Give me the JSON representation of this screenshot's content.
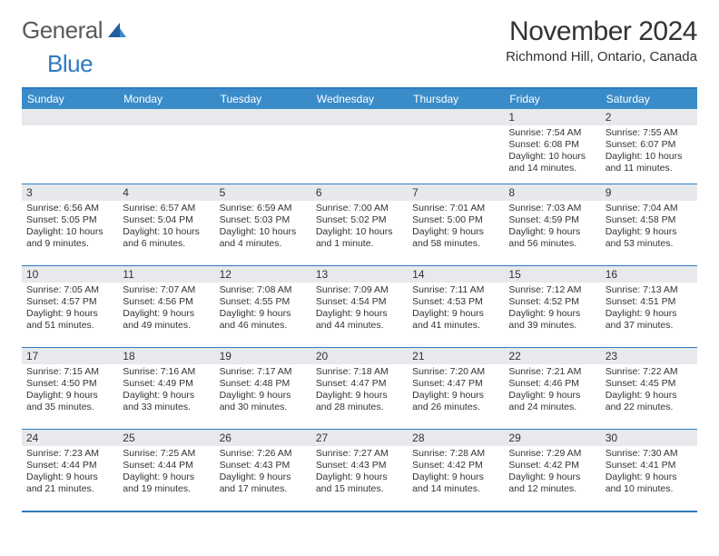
{
  "logo": {
    "word1": "General",
    "word2": "Blue"
  },
  "title": "November 2024",
  "location": "Richmond Hill, Ontario, Canada",
  "colors": {
    "header_bg": "#3a8cc9",
    "border": "#2f7ac0",
    "daybar": "#e7e9ec",
    "text": "#333333",
    "logo_gray": "#5a5a5a",
    "logo_blue": "#2f7ac0"
  },
  "weekdays": [
    "Sunday",
    "Monday",
    "Tuesday",
    "Wednesday",
    "Thursday",
    "Friday",
    "Saturday"
  ],
  "weeks": [
    [
      {
        "blank": true
      },
      {
        "blank": true
      },
      {
        "blank": true
      },
      {
        "blank": true
      },
      {
        "blank": true
      },
      {
        "n": "1",
        "sunrise": "Sunrise: 7:54 AM",
        "sunset": "Sunset: 6:08 PM",
        "daylight": "Daylight: 10 hours and 14 minutes."
      },
      {
        "n": "2",
        "sunrise": "Sunrise: 7:55 AM",
        "sunset": "Sunset: 6:07 PM",
        "daylight": "Daylight: 10 hours and 11 minutes."
      }
    ],
    [
      {
        "n": "3",
        "sunrise": "Sunrise: 6:56 AM",
        "sunset": "Sunset: 5:05 PM",
        "daylight": "Daylight: 10 hours and 9 minutes."
      },
      {
        "n": "4",
        "sunrise": "Sunrise: 6:57 AM",
        "sunset": "Sunset: 5:04 PM",
        "daylight": "Daylight: 10 hours and 6 minutes."
      },
      {
        "n": "5",
        "sunrise": "Sunrise: 6:59 AM",
        "sunset": "Sunset: 5:03 PM",
        "daylight": "Daylight: 10 hours and 4 minutes."
      },
      {
        "n": "6",
        "sunrise": "Sunrise: 7:00 AM",
        "sunset": "Sunset: 5:02 PM",
        "daylight": "Daylight: 10 hours and 1 minute."
      },
      {
        "n": "7",
        "sunrise": "Sunrise: 7:01 AM",
        "sunset": "Sunset: 5:00 PM",
        "daylight": "Daylight: 9 hours and 58 minutes."
      },
      {
        "n": "8",
        "sunrise": "Sunrise: 7:03 AM",
        "sunset": "Sunset: 4:59 PM",
        "daylight": "Daylight: 9 hours and 56 minutes."
      },
      {
        "n": "9",
        "sunrise": "Sunrise: 7:04 AM",
        "sunset": "Sunset: 4:58 PM",
        "daylight": "Daylight: 9 hours and 53 minutes."
      }
    ],
    [
      {
        "n": "10",
        "sunrise": "Sunrise: 7:05 AM",
        "sunset": "Sunset: 4:57 PM",
        "daylight": "Daylight: 9 hours and 51 minutes."
      },
      {
        "n": "11",
        "sunrise": "Sunrise: 7:07 AM",
        "sunset": "Sunset: 4:56 PM",
        "daylight": "Daylight: 9 hours and 49 minutes."
      },
      {
        "n": "12",
        "sunrise": "Sunrise: 7:08 AM",
        "sunset": "Sunset: 4:55 PM",
        "daylight": "Daylight: 9 hours and 46 minutes."
      },
      {
        "n": "13",
        "sunrise": "Sunrise: 7:09 AM",
        "sunset": "Sunset: 4:54 PM",
        "daylight": "Daylight: 9 hours and 44 minutes."
      },
      {
        "n": "14",
        "sunrise": "Sunrise: 7:11 AM",
        "sunset": "Sunset: 4:53 PM",
        "daylight": "Daylight: 9 hours and 41 minutes."
      },
      {
        "n": "15",
        "sunrise": "Sunrise: 7:12 AM",
        "sunset": "Sunset: 4:52 PM",
        "daylight": "Daylight: 9 hours and 39 minutes."
      },
      {
        "n": "16",
        "sunrise": "Sunrise: 7:13 AM",
        "sunset": "Sunset: 4:51 PM",
        "daylight": "Daylight: 9 hours and 37 minutes."
      }
    ],
    [
      {
        "n": "17",
        "sunrise": "Sunrise: 7:15 AM",
        "sunset": "Sunset: 4:50 PM",
        "daylight": "Daylight: 9 hours and 35 minutes."
      },
      {
        "n": "18",
        "sunrise": "Sunrise: 7:16 AM",
        "sunset": "Sunset: 4:49 PM",
        "daylight": "Daylight: 9 hours and 33 minutes."
      },
      {
        "n": "19",
        "sunrise": "Sunrise: 7:17 AM",
        "sunset": "Sunset: 4:48 PM",
        "daylight": "Daylight: 9 hours and 30 minutes."
      },
      {
        "n": "20",
        "sunrise": "Sunrise: 7:18 AM",
        "sunset": "Sunset: 4:47 PM",
        "daylight": "Daylight: 9 hours and 28 minutes."
      },
      {
        "n": "21",
        "sunrise": "Sunrise: 7:20 AM",
        "sunset": "Sunset: 4:47 PM",
        "daylight": "Daylight: 9 hours and 26 minutes."
      },
      {
        "n": "22",
        "sunrise": "Sunrise: 7:21 AM",
        "sunset": "Sunset: 4:46 PM",
        "daylight": "Daylight: 9 hours and 24 minutes."
      },
      {
        "n": "23",
        "sunrise": "Sunrise: 7:22 AM",
        "sunset": "Sunset: 4:45 PM",
        "daylight": "Daylight: 9 hours and 22 minutes."
      }
    ],
    [
      {
        "n": "24",
        "sunrise": "Sunrise: 7:23 AM",
        "sunset": "Sunset: 4:44 PM",
        "daylight": "Daylight: 9 hours and 21 minutes."
      },
      {
        "n": "25",
        "sunrise": "Sunrise: 7:25 AM",
        "sunset": "Sunset: 4:44 PM",
        "daylight": "Daylight: 9 hours and 19 minutes."
      },
      {
        "n": "26",
        "sunrise": "Sunrise: 7:26 AM",
        "sunset": "Sunset: 4:43 PM",
        "daylight": "Daylight: 9 hours and 17 minutes."
      },
      {
        "n": "27",
        "sunrise": "Sunrise: 7:27 AM",
        "sunset": "Sunset: 4:43 PM",
        "daylight": "Daylight: 9 hours and 15 minutes."
      },
      {
        "n": "28",
        "sunrise": "Sunrise: 7:28 AM",
        "sunset": "Sunset: 4:42 PM",
        "daylight": "Daylight: 9 hours and 14 minutes."
      },
      {
        "n": "29",
        "sunrise": "Sunrise: 7:29 AM",
        "sunset": "Sunset: 4:42 PM",
        "daylight": "Daylight: 9 hours and 12 minutes."
      },
      {
        "n": "30",
        "sunrise": "Sunrise: 7:30 AM",
        "sunset": "Sunset: 4:41 PM",
        "daylight": "Daylight: 9 hours and 10 minutes."
      }
    ]
  ]
}
